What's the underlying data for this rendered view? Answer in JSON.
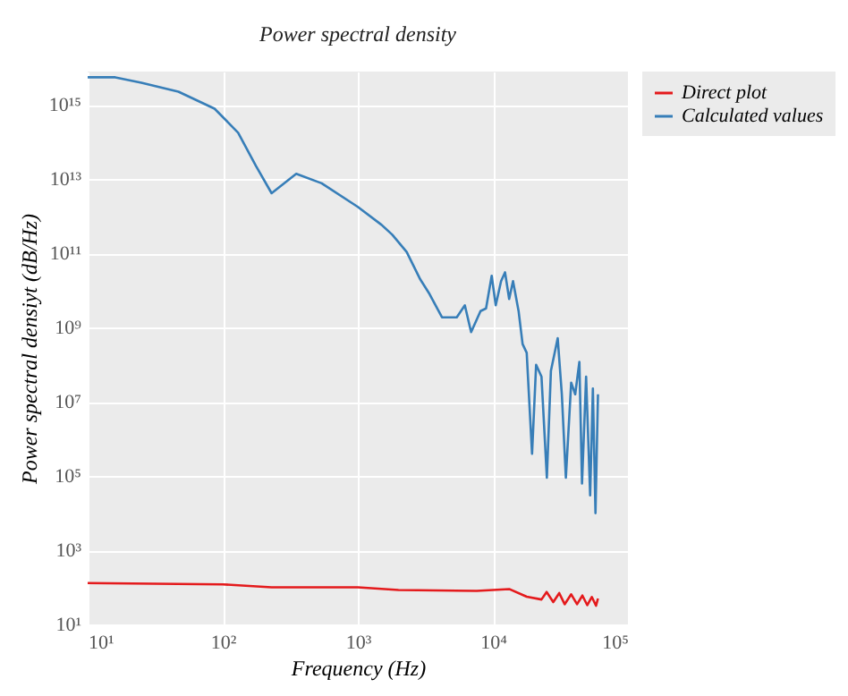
{
  "chart_data": {
    "type": "line",
    "title": "Power spectral density",
    "xlabel": "Frequency (Hz)",
    "ylabel": "Power spectral densiyt (dB/Hz)",
    "log": "xy",
    "grid": true,
    "legend": "right",
    "line_style": "solid",
    "xlim": [
      10,
      100000
    ],
    "ylim": [
      10,
      8000000000000000.0
    ],
    "xticks": [
      {
        "value": 10,
        "label": "10¹"
      },
      {
        "value": 100,
        "label": "10²"
      },
      {
        "value": 1000,
        "label": "10³"
      },
      {
        "value": 10000,
        "label": "10⁴"
      },
      {
        "value": 100000,
        "label": "10⁵"
      }
    ],
    "yticks": [
      {
        "value": 10,
        "label": "10¹"
      },
      {
        "value": 1000,
        "label": "10³"
      },
      {
        "value": 100000,
        "label": "10⁵"
      },
      {
        "value": 10000000,
        "label": "10⁷"
      },
      {
        "value": 1000000000,
        "label": "10⁹"
      },
      {
        "value": 100000000000,
        "label": "10¹¹"
      },
      {
        "value": 10000000000000,
        "label": "10¹³"
      },
      {
        "value": 1000000000000000,
        "label": "10¹⁵"
      }
    ],
    "series": [
      {
        "name": "Direct plot",
        "color": "#e41a1c",
        "x": [
          10,
          100,
          230,
          1000,
          2000,
          7600,
          13200,
          17800,
          22900,
          25000,
          28000,
          31000,
          34000,
          38000,
          42000,
          46000,
          50000,
          54000,
          58000,
          60000
        ],
        "values": [
          130,
          120,
          100,
          100,
          85,
          80,
          90,
          56,
          47,
          75,
          40,
          70,
          35,
          65,
          35,
          60,
          33,
          55,
          32,
          50
        ]
      },
      {
        "name": "Calculated values",
        "color": "#377eb8",
        "x": [
          10,
          16,
          25,
          47,
          87,
          130,
          176,
          230,
          350,
          540,
          1000,
          1500,
          1800,
          2300,
          2900,
          3400,
          4200,
          5400,
          6200,
          6900,
          8100,
          8900,
          9800,
          10500,
          11500,
          12300,
          13200,
          14100,
          15500,
          16600,
          17800,
          19500,
          20900,
          22900,
          25100,
          26900,
          30200,
          32400,
          34700,
          38000,
          40700,
          43700,
          45700,
          49000,
          52500,
          55000,
          57500,
          60000
        ],
        "values": [
          5600000000000000.0,
          5600000000000000.0,
          4000000000000000.0,
          2300000000000000.0,
          800000000000000.0,
          180000000000000.0,
          23000000000000.0,
          4200000000000.0,
          14000000000000.0,
          7800000000000.0,
          1800000000000.0,
          590000000000.0,
          320000000000.0,
          110000000000.0,
          20000000000.0,
          8000000000.0,
          1900000000.0,
          1900000000.0,
          4000000000.0,
          760000000.0,
          2800000000.0,
          3300000000.0,
          25000000000.0,
          4000000000.0,
          18000000000.0,
          31000000000.0,
          5900000000.0,
          18000000000.0,
          2800000000.0,
          360000000.0,
          210000000.0,
          400000.0,
          100000000.0,
          48000000.0,
          90000.0,
          69000000.0,
          520000000.0,
          16000000.0,
          90000.0,
          33000000.0,
          16000000.0,
          120000000.0,
          63000.0,
          48000000.0,
          30000.0,
          23000000.0,
          10000.0,
          16000000.0
        ]
      }
    ]
  }
}
